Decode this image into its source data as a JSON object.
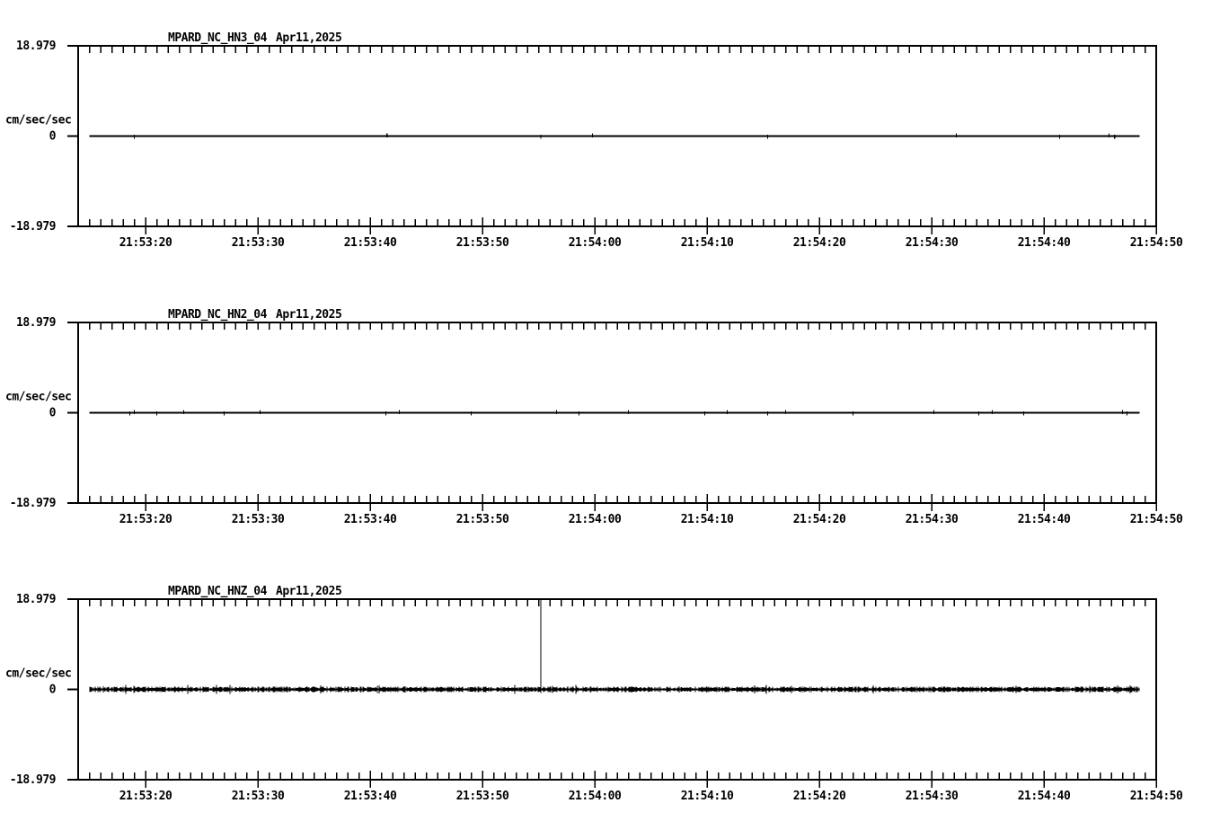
{
  "page": {
    "background": "#ffffff",
    "ink": "#000000"
  },
  "chart_data": [
    {
      "type": "line",
      "station": "MPARD_NC_HN3_04",
      "date": "Apr11,2025",
      "ylabel": "cm/sec/sec",
      "yticks": [
        "18.979",
        "0",
        "-18.979"
      ],
      "ylim": [
        -18.979,
        18.979
      ],
      "grid": false,
      "legend": "none",
      "xaxis": {
        "start_time": "21:53:14",
        "end_time": "21:54:50",
        "duration_s": 96,
        "minor_tick_s": 1,
        "major_tick_s": 10,
        "first_major_offset_s": 6,
        "tick_labels": [
          "21:53:20",
          "21:53:30",
          "21:53:40",
          "21:53:50",
          "21:54:00",
          "21:54:10",
          "21:54:20",
          "21:54:30",
          "21:54:40",
          "21:54:50"
        ]
      },
      "signal": {
        "baseline": 0,
        "noise_amp": 0.08,
        "trace_start_s": 1.0,
        "trace_end_s": 94.5,
        "blip_offsets_s": [
          5.0,
          27.5,
          41.2,
          45.8,
          61.4,
          78.2,
          87.4,
          91.8,
          92.3
        ],
        "spikes": []
      }
    },
    {
      "type": "line",
      "station": "MPARD_NC_HN2_04",
      "date": "Apr11,2025",
      "ylabel": "cm/sec/sec",
      "yticks": [
        "18.979",
        "0",
        "-18.979"
      ],
      "ylim": [
        -18.979,
        18.979
      ],
      "grid": false,
      "legend": "none",
      "xaxis": {
        "start_time": "21:53:14",
        "end_time": "21:54:50",
        "duration_s": 96,
        "minor_tick_s": 1,
        "major_tick_s": 10,
        "first_major_offset_s": 6,
        "tick_labels": [
          "21:53:20",
          "21:53:30",
          "21:53:40",
          "21:53:50",
          "21:54:00",
          "21:54:10",
          "21:54:20",
          "21:54:30",
          "21:54:40",
          "21:54:50"
        ]
      },
      "signal": {
        "baseline": 0,
        "noise_amp": 0.09,
        "trace_start_s": 1.0,
        "trace_end_s": 94.5,
        "blip_offsets_s": [
          4.6,
          5.0,
          7.0,
          9.4,
          13.0,
          16.2,
          27.4,
          28.6,
          35.0,
          42.6,
          44.6,
          49.0,
          55.8,
          57.8,
          61.4,
          63.0,
          69.0,
          76.2,
          80.2,
          81.4,
          84.2,
          93.0,
          93.4
        ],
        "spikes": []
      }
    },
    {
      "type": "line",
      "station": "MPARD_NC_HNZ_04",
      "date": "Apr11,2025",
      "ylabel": "cm/sec/sec",
      "yticks": [
        "18.979",
        "0",
        "-18.979"
      ],
      "ylim": [
        -18.979,
        18.979
      ],
      "grid": false,
      "legend": "none",
      "xaxis": {
        "start_time": "21:53:14",
        "end_time": "21:54:50",
        "duration_s": 96,
        "minor_tick_s": 1,
        "major_tick_s": 10,
        "first_major_offset_s": 6,
        "tick_labels": [
          "21:53:20",
          "21:53:30",
          "21:53:40",
          "21:53:50",
          "21:54:00",
          "21:54:10",
          "21:54:20",
          "21:54:30",
          "21:54:40",
          "21:54:50"
        ]
      },
      "signal": {
        "baseline": 0,
        "noise_amp": 0.45,
        "trace_start_s": 1.0,
        "trace_end_s": 94.5,
        "blip_offsets_s": [],
        "spikes": [
          {
            "time": "21:53:55",
            "time_s": 41.2,
            "peak": 18.979
          }
        ]
      }
    }
  ]
}
